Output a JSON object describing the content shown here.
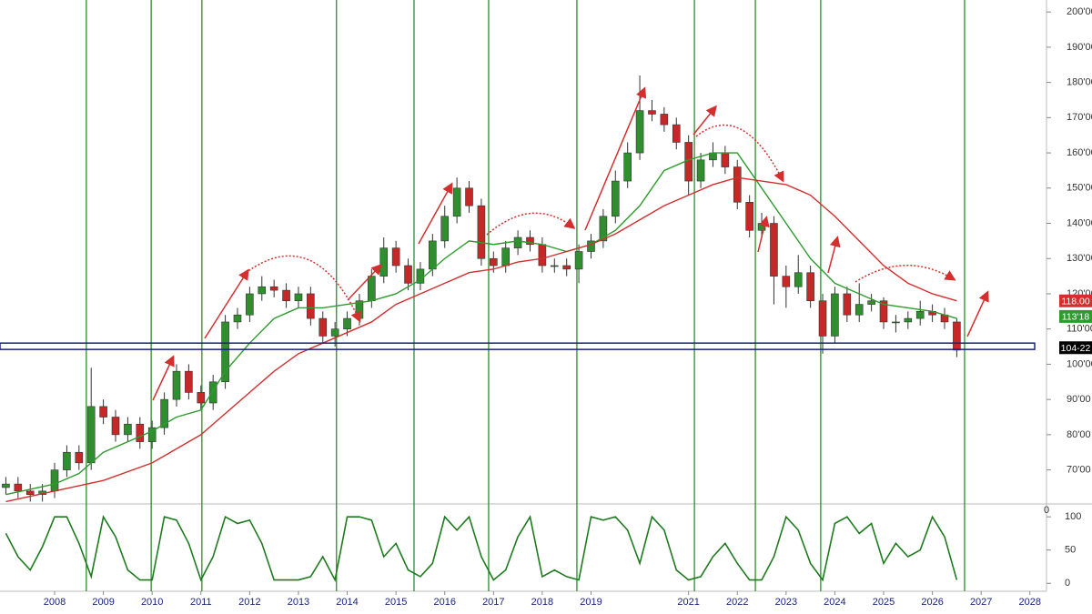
{
  "chart_data": {
    "type": "candlestick",
    "x": [
      2007.0,
      2007.25,
      2007.5,
      2007.75,
      2008.0,
      2008.25,
      2008.5,
      2008.75,
      2009.0,
      2009.25,
      2009.5,
      2009.75,
      2010.0,
      2010.25,
      2010.5,
      2010.75,
      2011.0,
      2011.25,
      2011.5,
      2011.75,
      2012.0,
      2012.25,
      2012.5,
      2012.75,
      2013.0,
      2013.25,
      2013.5,
      2013.75,
      2014.0,
      2014.25,
      2014.5,
      2014.75,
      2015.0,
      2015.25,
      2015.5,
      2015.75,
      2016.0,
      2016.25,
      2016.5,
      2016.75,
      2017.0,
      2017.25,
      2017.5,
      2017.75,
      2018.0,
      2018.25,
      2018.5,
      2018.75,
      2019.0,
      2019.25,
      2019.5,
      2019.75,
      2020.0,
      2020.25,
      2020.5,
      2020.75,
      2021.0,
      2021.25,
      2021.5,
      2021.75,
      2022.0,
      2022.25,
      2022.5,
      2022.75,
      2023.0,
      2023.25,
      2023.5,
      2023.75,
      2024.0,
      2024.25,
      2024.5,
      2024.75,
      2025.0,
      2025.25,
      2025.5,
      2025.75,
      2026.0,
      2026.25,
      2026.5
    ],
    "open": [
      65,
      66,
      64,
      63,
      64,
      70,
      75,
      72,
      88,
      85,
      80,
      83,
      78,
      82,
      90,
      98,
      92,
      89,
      95,
      112,
      114,
      120,
      122,
      121,
      118,
      120,
      113,
      108,
      110,
      113,
      118,
      125,
      133,
      128,
      123,
      127,
      135,
      142,
      150,
      145,
      130,
      128,
      133,
      136,
      134,
      128,
      128,
      127,
      132,
      135,
      142,
      152,
      160,
      172,
      171,
      168,
      163,
      152,
      158,
      160,
      156,
      146,
      138,
      140,
      125,
      122,
      126,
      118,
      108,
      120,
      114,
      117,
      118,
      112,
      112,
      113,
      115,
      114,
      112
    ],
    "high": [
      68,
      68,
      66,
      66,
      72,
      77,
      77,
      99,
      90,
      87,
      85,
      85,
      84,
      92,
      100,
      100,
      94,
      97,
      114,
      116,
      122,
      125,
      124,
      123,
      122,
      122,
      115,
      112,
      115,
      120,
      127,
      136,
      135,
      130,
      129,
      137,
      145,
      153,
      152,
      147,
      132,
      135,
      138,
      138,
      136,
      130,
      130,
      134,
      137,
      144,
      155,
      163,
      182,
      175,
      173,
      170,
      165,
      160,
      163,
      162,
      158,
      148,
      143,
      142,
      128,
      131,
      128,
      120,
      122,
      122,
      123,
      120,
      119,
      114,
      115,
      118,
      117,
      116,
      113
    ],
    "low": [
      63,
      62,
      61,
      61,
      62,
      68,
      70,
      70,
      83,
      78,
      78,
      76,
      76,
      80,
      88,
      90,
      87,
      87,
      93,
      110,
      112,
      118,
      119,
      116,
      116,
      111,
      106,
      105,
      108,
      111,
      116,
      123,
      126,
      121,
      121,
      125,
      133,
      140,
      143,
      128,
      126,
      126,
      131,
      132,
      126,
      126,
      125,
      123,
      130,
      133,
      140,
      150,
      158,
      169,
      166,
      161,
      148,
      150,
      156,
      154,
      144,
      136,
      136,
      117,
      116,
      120,
      116,
      103,
      106,
      112,
      112,
      115,
      110,
      109,
      110,
      111,
      112,
      110,
      102
    ],
    "close": [
      66,
      64,
      63,
      64,
      70,
      75,
      72,
      88,
      85,
      80,
      83,
      78,
      82,
      90,
      98,
      92,
      89,
      95,
      112,
      114,
      120,
      122,
      121,
      118,
      120,
      113,
      108,
      110,
      113,
      118,
      125,
      133,
      128,
      123,
      127,
      135,
      142,
      150,
      145,
      130,
      128,
      133,
      136,
      134,
      128,
      128,
      127,
      132,
      135,
      142,
      152,
      160,
      172,
      171,
      168,
      163,
      152,
      158,
      160,
      156,
      146,
      138,
      140,
      125,
      122,
      126,
      118,
      108,
      120,
      114,
      117,
      118,
      112,
      112,
      113,
      115,
      114,
      112,
      104
    ],
    "up_color": "#2f8f2f",
    "down_color": "#c62828",
    "xlim": [
      2006.88,
      2028.34
    ],
    "xticks": [
      2008,
      2009,
      2010,
      2011,
      2012,
      2013,
      2014,
      2015,
      2016,
      2017,
      2018,
      2019,
      2021,
      2022,
      2023,
      2024,
      2025,
      2026,
      2027,
      2028
    ],
    "ylim": [
      60.6,
      203.4
    ],
    "yticks": [
      {
        "value": 70,
        "label": "70'00"
      },
      {
        "value": 80,
        "label": "80'00"
      },
      {
        "value": 90,
        "label": "90'00"
      },
      {
        "value": 100,
        "label": "100'00"
      },
      {
        "value": 110,
        "label": "110'00"
      },
      {
        "value": 120,
        "label": "120'00"
      },
      {
        "value": 130,
        "label": "130'00"
      },
      {
        "value": 140,
        "label": "140'00"
      },
      {
        "value": 150,
        "label": "150'00"
      },
      {
        "value": 160,
        "label": "160'00"
      },
      {
        "value": 170,
        "label": "170'00"
      },
      {
        "value": 180,
        "label": "180'00"
      },
      {
        "value": 190,
        "label": "190'00"
      },
      {
        "value": 200,
        "label": "200'00"
      }
    ],
    "moving_averages": [
      {
        "color": "#2e9b2e",
        "x": [
          2007.0,
          2008.0,
          2008.5,
          2009.0,
          2009.5,
          2010.0,
          2010.5,
          2011.0,
          2011.5,
          2012.0,
          2012.5,
          2013.0,
          2013.5,
          2014.0,
          2014.5,
          2015.0,
          2015.5,
          2016.0,
          2016.5,
          2017.0,
          2017.5,
          2018.0,
          2018.5,
          2019.0,
          2019.5,
          2020.0,
          2020.5,
          2021.0,
          2021.5,
          2022.0,
          2022.5,
          2023.0,
          2023.5,
          2024.0,
          2024.5,
          2025.0,
          2025.5,
          2026.0,
          2026.5
        ],
        "values": [
          63,
          66,
          69,
          75,
          78,
          81,
          85,
          87,
          98,
          106,
          113,
          116,
          116,
          117,
          118,
          120,
          124,
          130,
          135,
          134,
          135,
          134,
          132,
          134,
          138,
          145,
          155,
          158,
          160,
          160,
          150,
          140,
          130,
          123,
          120,
          117,
          116,
          115,
          113
        ]
      },
      {
        "color": "#d32f2f",
        "x": [
          2007.0,
          2008.0,
          2009.0,
          2010.0,
          2011.0,
          2011.5,
          2012.0,
          2012.5,
          2013.0,
          2013.5,
          2014.0,
          2014.5,
          2015.0,
          2015.5,
          2016.0,
          2016.5,
          2017.0,
          2017.5,
          2018.0,
          2018.5,
          2019.0,
          2019.5,
          2020.0,
          2020.5,
          2021.0,
          2021.5,
          2022.0,
          2022.5,
          2023.0,
          2023.5,
          2024.0,
          2024.5,
          2025.0,
          2025.5,
          2026.0,
          2026.5
        ],
        "values": [
          61,
          64,
          67,
          72,
          80,
          86,
          92,
          98,
          103,
          106,
          109,
          112,
          117,
          120,
          123,
          126,
          127,
          129,
          130,
          132,
          134,
          137,
          141,
          145,
          148,
          151,
          153,
          152,
          151,
          148,
          142,
          135,
          128,
          123,
          120,
          118
        ]
      }
    ],
    "cycle_lines": [
      2008.65,
      2009.98,
      2011.02,
      2013.78,
      2015.37,
      2016.9,
      2018.71,
      2021.12,
      2022.37,
      2023.71,
      2026.66
    ],
    "cycle_color": "#2e8b2e",
    "support_band": [
      104.2,
      106
    ],
    "support_color": "#1a237e",
    "price_tags": [
      {
        "value": 118,
        "label": "118.00",
        "color": "#d32f2f"
      },
      {
        "value": 113.5625,
        "label": "113'18",
        "color": "#2e9b2e"
      },
      {
        "value": 104.6875,
        "label": "104-22",
        "color": "#000000"
      }
    ],
    "oscillator": {
      "color": "#1f7a1f",
      "values": [
        75,
        40,
        20,
        55,
        100,
        100,
        60,
        10,
        100,
        70,
        20,
        5,
        5,
        100,
        95,
        60,
        5,
        40,
        100,
        90,
        95,
        60,
        5,
        5,
        5,
        10,
        40,
        5,
        100,
        100,
        95,
        40,
        60,
        20,
        10,
        30,
        100,
        80,
        100,
        40,
        5,
        20,
        70,
        100,
        10,
        20,
        10,
        5,
        100,
        95,
        100,
        80,
        30,
        100,
        80,
        20,
        5,
        10,
        40,
        60,
        30,
        5,
        5,
        40,
        100,
        80,
        30,
        5,
        90,
        100,
        75,
        90,
        30,
        60,
        40,
        50,
        100,
        70,
        5
      ],
      "ylim": [
        -12,
        118
      ],
      "yticks": [
        0,
        50,
        100
      ],
      "readout": 0
    }
  }
}
